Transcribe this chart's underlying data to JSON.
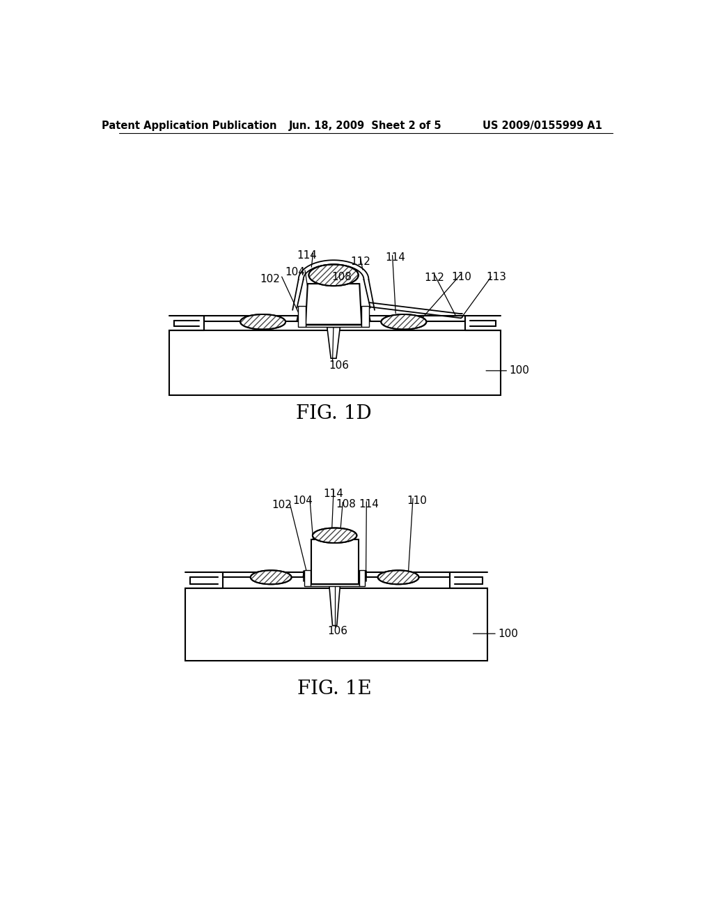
{
  "bg": "#ffffff",
  "header_left": "Patent Application Publication",
  "header_mid": "Jun. 18, 2009  Sheet 2 of 5",
  "header_right": "US 2009/0155999 A1",
  "fig1d_label": "FIG. 1D",
  "fig1e_label": "FIG. 1E"
}
